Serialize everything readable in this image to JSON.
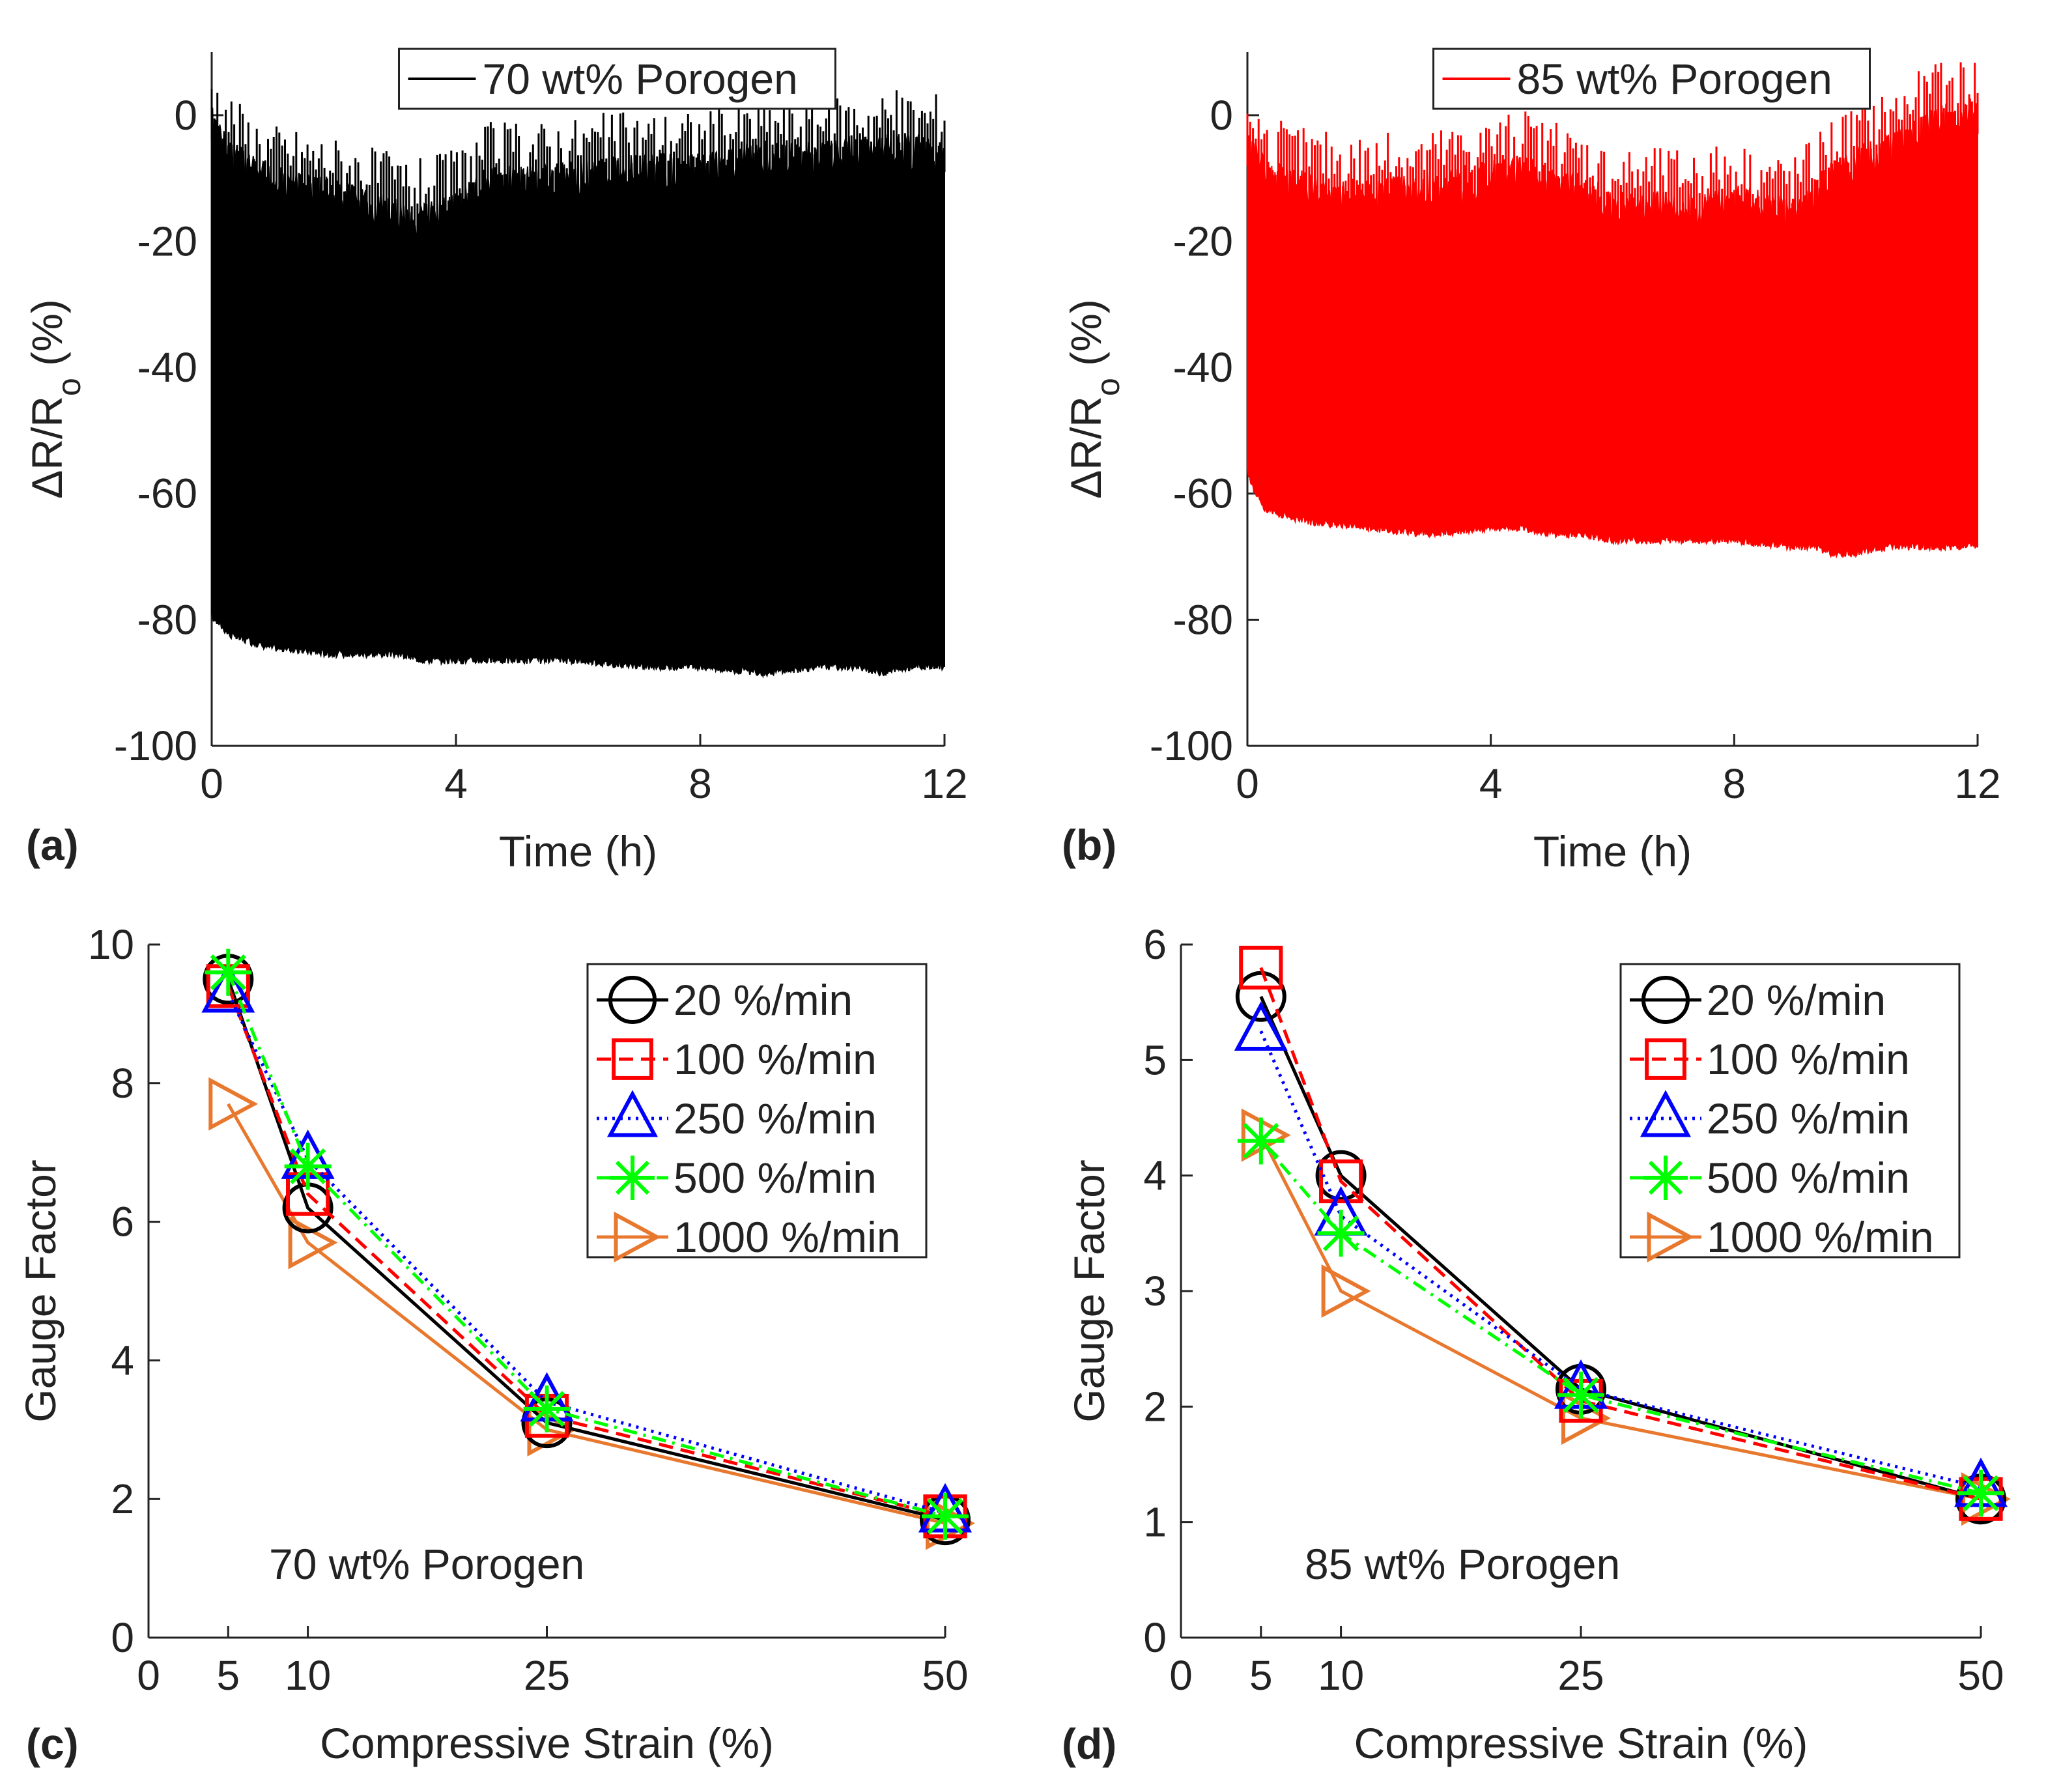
{
  "figure": {
    "panel_labels": [
      "(a)",
      "(b)",
      "(c)",
      "(d)"
    ]
  },
  "chart_data": [
    {
      "type": "line",
      "panel": "(a)",
      "title": "",
      "xlabel": "Time (h)",
      "ylabel": "ΔR/Ro (%)",
      "ylabel_main": "ΔR/R",
      "ylabel_sub": "o",
      "ylabel_tail": " (%)",
      "xlim": [
        0,
        12
      ],
      "ylim": [
        -100,
        10
      ],
      "xticks": [
        0,
        4,
        8,
        12
      ],
      "yticks": [
        0,
        -20,
        -40,
        -60,
        -80,
        -100
      ],
      "legend": "top-center",
      "color": "#000000",
      "series": [
        {
          "name": "70 wt% Porogen",
          "envelope_time_h": [
            0,
            0.1,
            0.3,
            0.6,
            1,
            2,
            3,
            3.5,
            4,
            4.5,
            5,
            6,
            7,
            8,
            9,
            10,
            10.5,
            11,
            11.5,
            12
          ],
          "upper_pct": [
            2,
            -1,
            -3,
            -6,
            -8,
            -10,
            -13,
            -14,
            -12,
            -8,
            -8,
            -7,
            -6,
            -6,
            -4,
            -4,
            -3,
            -3,
            -3,
            -3
          ],
          "lower_pct": [
            -80,
            -81,
            -83,
            -84,
            -85,
            -86,
            -86,
            -87,
            -87,
            -87,
            -87,
            -87,
            -88,
            -88,
            -89,
            -88,
            -88,
            -89,
            -88,
            -88
          ]
        }
      ]
    },
    {
      "type": "line",
      "panel": "(b)",
      "title": "",
      "xlabel": "Time (h)",
      "ylabel": "ΔR/Ro (%)",
      "ylabel_main": "ΔR/R",
      "ylabel_sub": "o",
      "ylabel_tail": " (%)",
      "xlim": [
        0,
        12
      ],
      "ylim": [
        -100,
        10
      ],
      "xticks": [
        0,
        4,
        8,
        12
      ],
      "yticks": [
        0,
        -20,
        -40,
        -60,
        -80,
        -100
      ],
      "legend": "top-center",
      "color": "#ff0000",
      "series": [
        {
          "name": "85 wt% Porogen",
          "envelope_time_h": [
            0,
            0.1,
            0.3,
            0.6,
            1,
            2,
            3,
            4,
            4.5,
            5,
            5.5,
            6,
            7,
            8,
            9,
            9.3,
            9.6,
            10,
            10.5,
            11,
            11.5,
            12
          ],
          "upper_pct": [
            -2,
            -3,
            -7,
            -8,
            -9,
            -10,
            -9,
            -7,
            -6,
            -8,
            -9,
            -12,
            -12,
            -11,
            -13,
            -10,
            -7,
            -5,
            -3,
            0,
            2,
            3
          ],
          "lower_pct": [
            -57,
            -60,
            -63,
            -64,
            -65,
            -66,
            -67,
            -66,
            -66,
            -67,
            -67,
            -68,
            -68,
            -68,
            -69,
            -69,
            -70,
            -70,
            -69,
            -69,
            -69,
            -69
          ]
        }
      ]
    },
    {
      "type": "line",
      "panel": "(c)",
      "title": "",
      "xlabel": "Compressive Strain (%)",
      "ylabel": "Gauge Factor",
      "xlim": [
        0,
        50
      ],
      "ylim": [
        0,
        10
      ],
      "xticks": [
        0,
        5,
        10,
        25,
        50
      ],
      "yticks": [
        0,
        2,
        4,
        6,
        8,
        10
      ],
      "legend": "top-right",
      "annotation": "70 wt% Porogen",
      "x": [
        5,
        10,
        25,
        50
      ],
      "series": [
        {
          "name": "20 %/min",
          "values": [
            9.5,
            6.2,
            3.1,
            1.7
          ],
          "color": "#000000",
          "dash": "solid",
          "marker": "circle"
        },
        {
          "name": "100 %/min",
          "values": [
            9.4,
            6.4,
            3.2,
            1.75
          ],
          "color": "#ff0000",
          "dash": "dashed",
          "marker": "square"
        },
        {
          "name": "250 %/min",
          "values": [
            9.3,
            6.9,
            3.4,
            1.8
          ],
          "color": "#0000ff",
          "dash": "dotted",
          "marker": "triangle"
        },
        {
          "name": "500 %/min",
          "values": [
            9.6,
            6.8,
            3.3,
            1.75
          ],
          "color": "#00ff00",
          "dash": "dashdot",
          "marker": "star"
        },
        {
          "name": "1000 %/min",
          "values": [
            7.7,
            5.7,
            3.0,
            1.65
          ],
          "color": "#e8782e",
          "dash": "solid",
          "marker": "triangle-right"
        }
      ]
    },
    {
      "type": "line",
      "panel": "(d)",
      "title": "",
      "xlabel": "Compressive Strain (%)",
      "ylabel": "Gauge Factor",
      "xlim": [
        0,
        50
      ],
      "ylim": [
        0,
        6
      ],
      "xticks": [
        0,
        5,
        10,
        25,
        50
      ],
      "yticks": [
        0,
        1,
        2,
        3,
        4,
        5,
        6
      ],
      "legend": "top-right",
      "annotation": "85 wt% Porogen",
      "x": [
        5,
        10,
        25,
        50
      ],
      "series": [
        {
          "name": "20 %/min",
          "values": [
            5.55,
            4.0,
            2.15,
            1.2
          ],
          "color": "#000000",
          "dash": "solid",
          "marker": "circle"
        },
        {
          "name": "100 %/min",
          "values": [
            5.8,
            3.95,
            2.05,
            1.2
          ],
          "color": "#ff0000",
          "dash": "dashed",
          "marker": "square"
        },
        {
          "name": "250 %/min",
          "values": [
            5.25,
            3.65,
            2.15,
            1.3
          ],
          "color": "#0000ff",
          "dash": "dotted",
          "marker": "triangle"
        },
        {
          "name": "500 %/min",
          "values": [
            4.3,
            3.5,
            2.1,
            1.25
          ],
          "color": "#00ff00",
          "dash": "dashdot",
          "marker": "star"
        },
        {
          "name": "1000 %/min",
          "values": [
            4.35,
            3.0,
            1.9,
            1.2
          ],
          "color": "#e8782e",
          "dash": "solid",
          "marker": "triangle-right"
        }
      ]
    }
  ]
}
